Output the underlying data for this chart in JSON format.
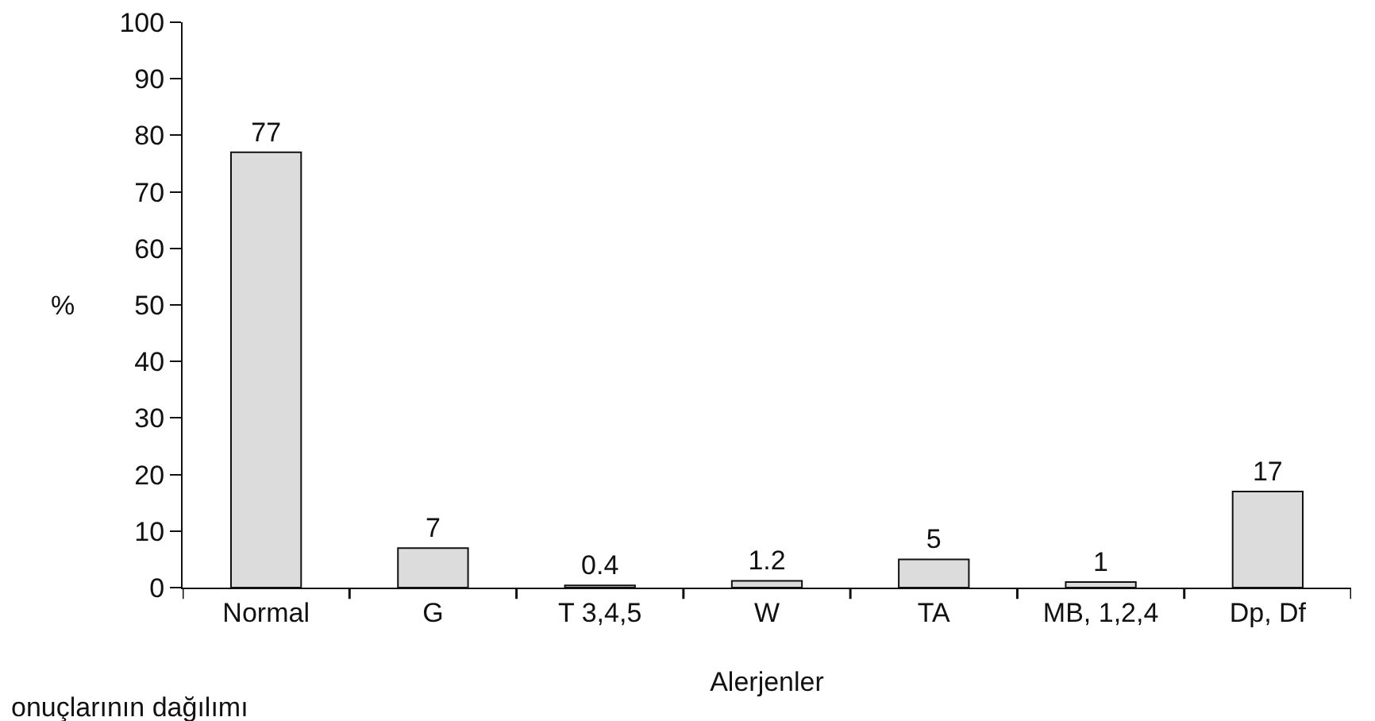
{
  "chart_data": {
    "type": "bar",
    "xlabel": "Alerjenler",
    "ylabel": "%",
    "categories": [
      "Normal",
      "G",
      "T 3,4,5",
      "W",
      "TA",
      "MB, 1,2,4",
      "Dp, Df"
    ],
    "values": [
      77,
      7,
      0.4,
      1.2,
      5,
      1,
      17
    ],
    "color": "#dcdcdc",
    "ylim": [
      0,
      100
    ],
    "yticks": [
      0,
      10,
      20,
      30,
      40,
      50,
      60,
      70,
      80,
      90,
      100
    ],
    "grid": false,
    "data_labels": true,
    "annotations": [
      "onuçlarının dağılımı"
    ]
  }
}
